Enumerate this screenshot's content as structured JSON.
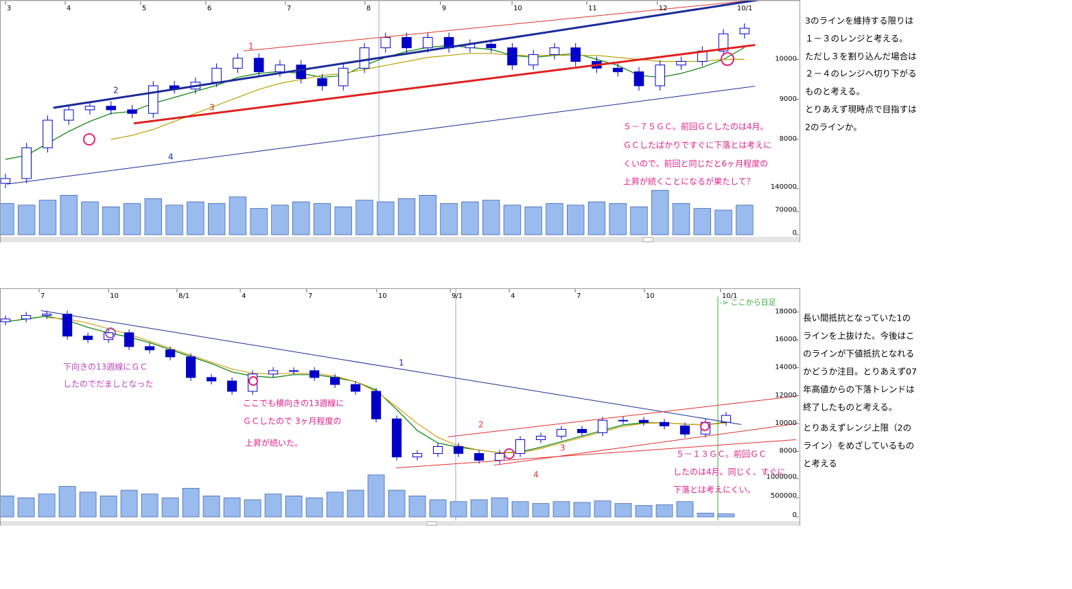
{
  "chart_data": [
    {
      "type": "candlestick",
      "xticks": [
        {
          "value": 0,
          "label": "3"
        },
        {
          "value": 2.83,
          "label": "4"
        },
        {
          "value": 6.4,
          "label": "5"
        },
        {
          "value": 9.49,
          "label": "6"
        },
        {
          "value": 13.26,
          "label": "7"
        },
        {
          "value": 17.03,
          "label": "8"
        },
        {
          "value": 20.6,
          "label": "9"
        },
        {
          "value": 23.99,
          "label": "10"
        },
        {
          "value": 27.53,
          "label": "11"
        },
        {
          "value": 30.87,
          "label": "12"
        },
        {
          "value": 34.58,
          "label": "10/1"
        }
      ],
      "xlim": [
        -0.16,
        37.54
      ],
      "ylim": [
        6850,
        11400
      ],
      "yticks": [
        8000,
        9000,
        10000
      ],
      "vol_lim": [
        0,
        150000
      ],
      "vol_ticks": [
        0,
        70000,
        140000
      ],
      "color": "#0000c8",
      "volume_color": "#99bbee",
      "open": [
        6900,
        7020,
        7790,
        8480,
        8740,
        8830,
        8740,
        8650,
        9340,
        9260,
        9430,
        9780,
        10030,
        9690,
        9860,
        9520,
        9340,
        9780,
        10290,
        10550,
        10290,
        10550,
        10290,
        10380,
        10290,
        9860,
        10120,
        10290,
        9950,
        9780,
        9690,
        9340,
        9860,
        9950,
        10210,
        10640
      ],
      "high": [
        7140,
        7910,
        8600,
        8860,
        8950,
        8950,
        8860,
        9460,
        9460,
        9550,
        9900,
        10150,
        10150,
        9980,
        9980,
        9640,
        9900,
        10410,
        10670,
        10670,
        10670,
        10670,
        10500,
        10500,
        10410,
        10240,
        10410,
        10410,
        10070,
        9900,
        9810,
        9980,
        10070,
        10330,
        10760,
        10900
      ],
      "low": [
        6780,
        6900,
        7670,
        8360,
        8620,
        8620,
        8530,
        8530,
        9140,
        9140,
        9310,
        9660,
        9570,
        9570,
        9400,
        9220,
        9220,
        9660,
        10170,
        10170,
        10170,
        10170,
        10170,
        10170,
        9740,
        9740,
        10000,
        9830,
        9660,
        9570,
        9220,
        9220,
        9740,
        9830,
        10090,
        10520
      ],
      "close": [
        7020,
        7790,
        8480,
        8740,
        8830,
        8740,
        8650,
        9340,
        9260,
        9430,
        9780,
        10030,
        9690,
        9860,
        9520,
        9340,
        9780,
        10290,
        10550,
        10290,
        10550,
        10290,
        10380,
        10290,
        9860,
        10120,
        10290,
        9950,
        9780,
        9690,
        9340,
        9860,
        9950,
        10210,
        10640,
        10780
      ],
      "volume": [
        95000,
        90000,
        105000,
        120000,
        100000,
        85000,
        95000,
        110000,
        90000,
        100000,
        95000,
        115000,
        80000,
        90000,
        100000,
        95000,
        85000,
        105000,
        100000,
        110000,
        120000,
        95000,
        100000,
        105000,
        90000,
        85000,
        95000,
        90000,
        100000,
        95000,
        85000,
        135000,
        95000,
        80000,
        75000,
        90000
      ],
      "moving_averages": [
        {
          "color": "#008000",
          "values": [
            7500,
            7600,
            7900,
            8200,
            8450,
            8650,
            8700,
            8900,
            9050,
            9200,
            9350,
            9550,
            9650,
            9700,
            9650,
            9550,
            9600,
            9850,
            10050,
            10200,
            10300,
            10350,
            10300,
            10250,
            10100,
            10050,
            10100,
            10150,
            10000,
            9850,
            9600,
            9550,
            9650,
            9800,
            10000,
            10300
          ]
        },
        {
          "color": "#b8a000",
          "values": [
            null,
            null,
            null,
            null,
            null,
            8000,
            8100,
            8250,
            8450,
            8650,
            8850,
            9050,
            9250,
            9400,
            9500,
            9600,
            9650,
            9750,
            9850,
            9950,
            10050,
            10100,
            10150,
            10150,
            10100,
            10100,
            10100,
            10100,
            10100,
            10050,
            10000,
            9950,
            9950,
            9950,
            10000,
            10000
          ]
        }
      ],
      "trend_lines": [
        {
          "label": "1",
          "color": "#e03030",
          "style": "thin",
          "x": [
            11.28,
            35.8
          ],
          "y": [
            10210,
            11500
          ]
        },
        {
          "label": "2",
          "color": "#1a2a9a",
          "style": "thick",
          "x": [
            2.27,
            35.8
          ],
          "y": [
            8790,
            11500
          ]
        },
        {
          "label": "3",
          "color": "#e02020",
          "style": "thick",
          "x": [
            6.08,
            35.5
          ],
          "y": [
            8400,
            10360
          ]
        },
        {
          "label": "4",
          "color": "#1a2a9a",
          "style": "thin",
          "x": [
            0.07,
            35.5
          ],
          "y": [
            6880,
            9330
          ]
        }
      ],
      "annotations": [
        "５－７５ＧＣ。前回ＧＣしたのは4月。",
        "ＧＣしたばかりですぐに下落とは考えに",
        "くいので、前回と同じだと6ヶ月程度の",
        "上昇が続くことになるが果たして？"
      ],
      "commentary": [
        "3のラインを維持する限りは",
        "１－３のレンジと考える。",
        "ただし３を割り込んだ場合は",
        "２－４のレンジへ切り下がる",
        "ものと考える。",
        "とりあえず現時点で目指すは",
        "2のラインか。"
      ]
    },
    {
      "type": "candlestick",
      "xticks": [
        {
          "value": 1.63,
          "label": "7"
        },
        {
          "value": 5,
          "label": "10"
        },
        {
          "value": 8.33,
          "label": "8/1"
        },
        {
          "value": 11.4,
          "label": "4"
        },
        {
          "value": 14.63,
          "label": "7"
        },
        {
          "value": 18.03,
          "label": "10"
        },
        {
          "value": 21.6,
          "label": "9/1"
        },
        {
          "value": 24.47,
          "label": "4"
        },
        {
          "value": 27.67,
          "label": "7"
        },
        {
          "value": 31.03,
          "label": "10"
        },
        {
          "value": 34.73,
          "label": "10/1"
        }
      ],
      "xlim": [
        -0.17,
        38.5
      ],
      "ylim": [
        6400,
        19600
      ],
      "yticks": [
        8000,
        10000,
        12000,
        14000,
        16000,
        18000
      ],
      "vol_lim": [
        0,
        1150000
      ],
      "vol_ticks": [
        0,
        500000,
        1000000
      ],
      "color": "#0000c8",
      "volume_color": "#99bbee",
      "open": [
        17300,
        17500,
        17750,
        17850,
        16270,
        16020,
        16510,
        15520,
        15280,
        14780,
        13300,
        13050,
        12310,
        13550,
        13790,
        13790,
        13300,
        12800,
        12310,
        10330,
        7600,
        7850,
        8350,
        7850,
        7360,
        7850,
        8840,
        9090,
        9580,
        9340,
        10230,
        10230,
        10080,
        9830,
        9240,
        10080
      ],
      "high": [
        17750,
        18000,
        18100,
        18100,
        16520,
        16760,
        16760,
        15770,
        15530,
        15030,
        13550,
        13300,
        13800,
        14040,
        14040,
        14040,
        13550,
        13050,
        12560,
        10580,
        8100,
        8600,
        8600,
        8100,
        8100,
        9090,
        9340,
        9830,
        9830,
        10480,
        10480,
        10480,
        10330,
        10080,
        10330,
        10830
      ],
      "low": [
        17050,
        17250,
        17500,
        16020,
        15770,
        15770,
        15270,
        15030,
        14530,
        13050,
        12800,
        12060,
        12060,
        13300,
        13540,
        13050,
        12550,
        12060,
        10080,
        7350,
        7350,
        7600,
        7600,
        7110,
        7110,
        7600,
        8590,
        8840,
        9090,
        9090,
        9980,
        9830,
        9580,
        8990,
        8990,
        9830
      ],
      "close": [
        17500,
        17750,
        17850,
        16270,
        16020,
        16510,
        15520,
        15280,
        14780,
        13300,
        13050,
        12310,
        13550,
        13790,
        13790,
        13300,
        12800,
        12310,
        10330,
        7600,
        7850,
        8350,
        7850,
        7360,
        7850,
        8840,
        9090,
        9580,
        9340,
        10230,
        10230,
        10080,
        9830,
        9240,
        10080,
        10580
      ],
      "volume": [
        550000,
        500000,
        600000,
        800000,
        650000,
        550000,
        700000,
        600000,
        500000,
        750000,
        550000,
        500000,
        450000,
        600000,
        550000,
        500000,
        650000,
        700000,
        1100000,
        700000,
        550000,
        450000,
        400000,
        450000,
        500000,
        400000,
        350000,
        400000,
        380000,
        420000,
        350000,
        300000,
        320000,
        400000,
        100000,
        80000
      ],
      "moving_averages": [
        {
          "color": "#008000",
          "values": [
            17300,
            17500,
            17700,
            17400,
            16900,
            16500,
            16200,
            15800,
            15300,
            14800,
            14300,
            13700,
            13400,
            13300,
            13500,
            13500,
            13300,
            13000,
            12400,
            11000,
            9500,
            8600,
            8300,
            8100,
            7900,
            7950,
            8300,
            8700,
            9100,
            9500,
            9900,
            10050,
            10050,
            9950,
            9900,
            10100
          ]
        },
        {
          "color": "#d4a017",
          "values": [
            null,
            null,
            17600,
            17500,
            17200,
            16800,
            16400,
            15900,
            15400,
            14900,
            14400,
            13900,
            13600,
            13550,
            13600,
            13600,
            13400,
            13000,
            12300,
            11200,
            10000,
            9000,
            8400,
            8100,
            7900,
            7900,
            8200,
            8600,
            9000,
            9400,
            9800,
            10000,
            10050,
            9950,
            9900,
            10050
          ]
        }
      ],
      "trend_lines": [
        {
          "label": "1",
          "color": "#1a2a9a",
          "style": "thin",
          "x": [
            1.73,
            35.73
          ],
          "y": [
            18100,
            9930
          ]
        },
        {
          "label": "2",
          "color": "#e03030",
          "style": "thin",
          "x": [
            21.47,
            38.4
          ],
          "y": [
            9040,
            11960
          ]
        },
        {
          "label": "3",
          "color": "#e03030",
          "style": "thin",
          "x": [
            23.73,
            38.4
          ],
          "y": [
            7010,
            9980
          ]
        },
        {
          "label": "4",
          "color": "#e03030",
          "style": "thin",
          "x": [
            18.97,
            38.4
          ],
          "y": [
            6810,
            8840
          ]
        }
      ],
      "daily_from_label": "-> ここから日足",
      "annotations": [
        "下向きの13週線にＧＣ",
        "したのでだましとなった",
        "ここでも横向きの13週線に",
        "ＧＣしたので 3ヶ月程度の",
        "上昇が続いた。",
        "５－１３ＧＣ。前回ＧＣ",
        "したのは4月。同じく、すぐに",
        "下落とは考えにくい。"
      ],
      "commentary": [
        "長い間抵抗となっていた1の",
        "ラインを上抜けた。今後はこ",
        "のラインが下値抵抗となれる",
        "かどうか注目。とりあえず07",
        "年高値からの下落トレンドは",
        "終了したものと考える。",
        "とりあえずレンジ上限（2の",
        "ライン）をめざしているもの",
        "と考える"
      ]
    }
  ]
}
